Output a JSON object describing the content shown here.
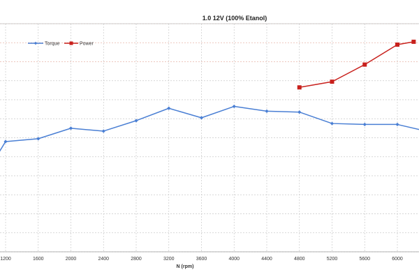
{
  "chart_data": {
    "type": "line",
    "title": "1.0 12V (100% Etanol)",
    "xlabel": "N (rpm)",
    "ylabel": "",
    "x_ticks": [
      1200,
      1600,
      2000,
      2400,
      2800,
      3200,
      3600,
      4000,
      4400,
      4800,
      5200,
      5600,
      6000
    ],
    "xlim": [
      1100,
      6300
    ],
    "ylim": [
      0,
      12
    ],
    "grid": true,
    "legend_position": "top-left",
    "series": [
      {
        "name": "Torque",
        "color": "#4a7fd4",
        "marker": "diamond",
        "x": [
          1100,
          1200,
          1600,
          2000,
          2400,
          2800,
          3200,
          3600,
          4000,
          4400,
          4800,
          5200,
          5600,
          6000,
          6300
        ],
        "y": [
          5.1,
          5.8,
          5.95,
          6.5,
          6.35,
          6.9,
          7.55,
          7.05,
          7.65,
          7.4,
          7.35,
          6.75,
          6.7,
          6.7,
          6.4
        ]
      },
      {
        "name": "Power",
        "color": "#c8201c",
        "marker": "square",
        "x": [
          4800,
          5200,
          5600,
          6000,
          6200
        ],
        "y": [
          8.65,
          8.95,
          9.85,
          10.9,
          11.05
        ]
      }
    ]
  }
}
